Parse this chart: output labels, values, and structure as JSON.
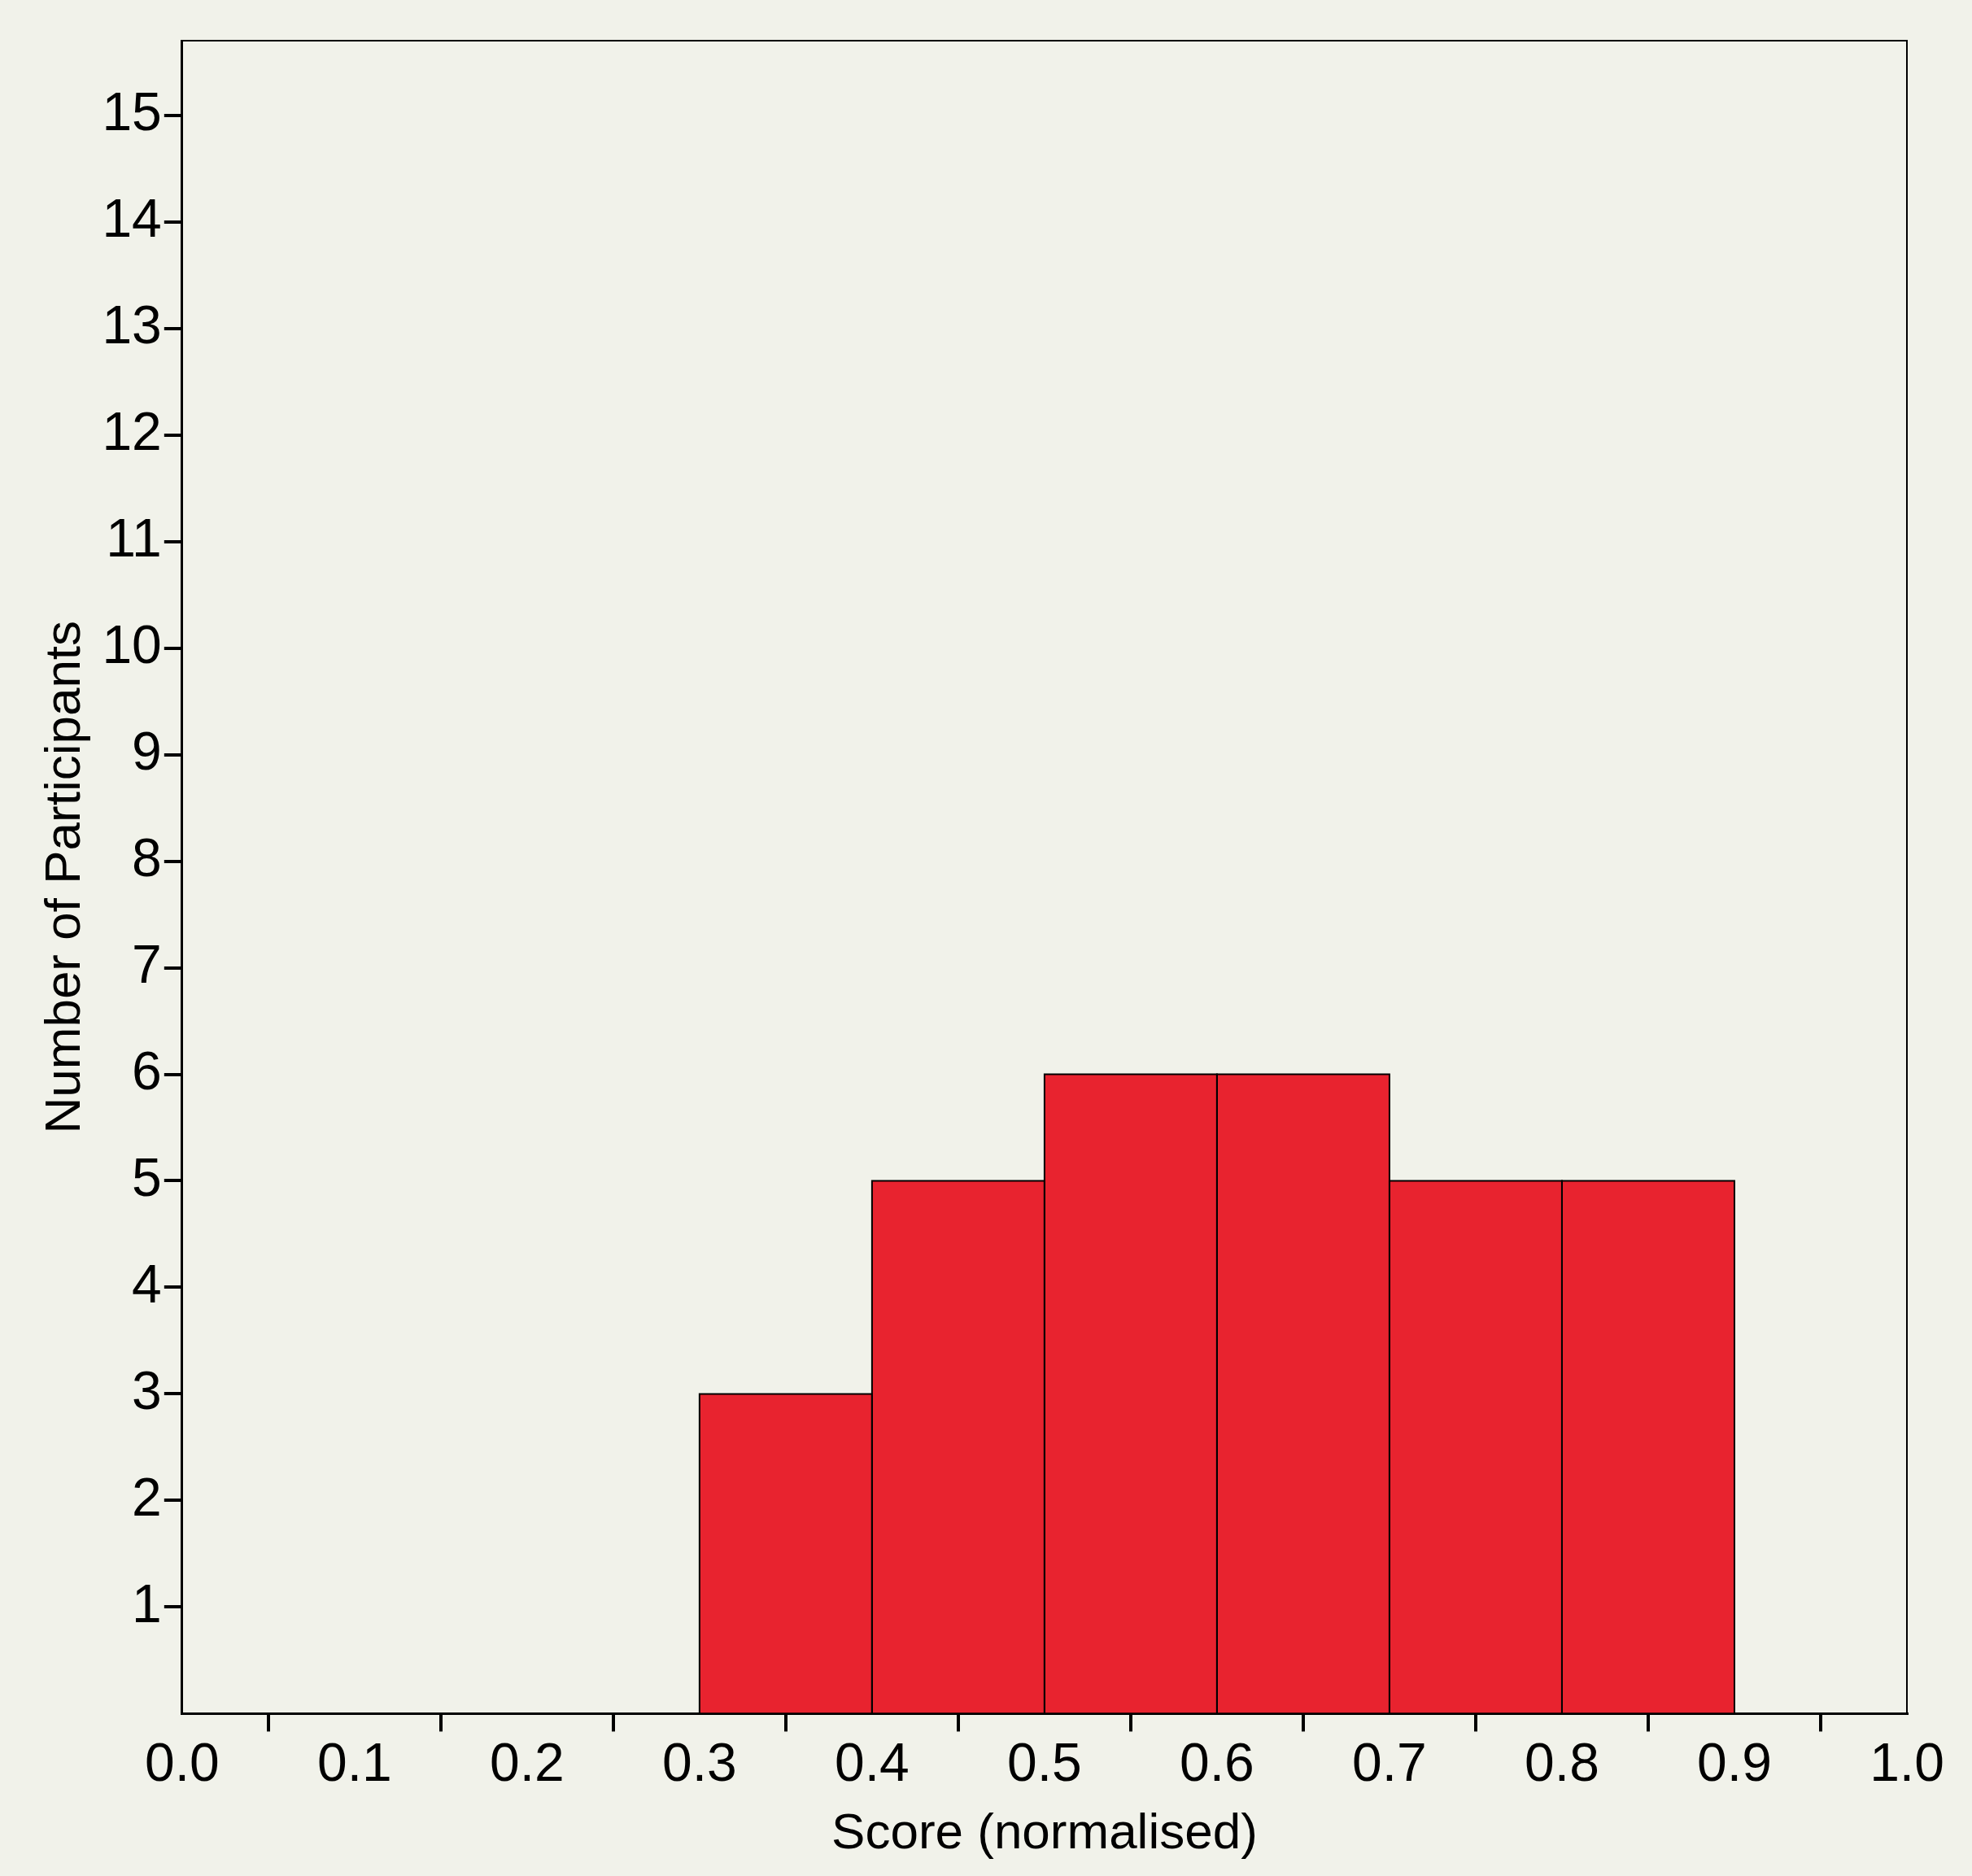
{
  "chart_data": {
    "type": "histogram",
    "xlabel": "Score (normalised)",
    "ylabel": "Number of Participants",
    "bins": [
      0.3,
      0.4,
      0.5,
      0.6,
      0.7,
      0.8,
      0.9
    ],
    "values": [
      3,
      5,
      6,
      6,
      5,
      5
    ],
    "color": "#e8232f",
    "xlim": [
      0,
      1
    ],
    "xticks": [
      {
        "value": 0,
        "label": "0.0"
      },
      {
        "value": 0.1,
        "label": "0.1"
      },
      {
        "value": 0.2,
        "label": "0.2"
      },
      {
        "value": 0.3,
        "label": "0.3"
      },
      {
        "value": 0.4,
        "label": "0.4"
      },
      {
        "value": 0.5,
        "label": "0.5"
      },
      {
        "value": 0.6,
        "label": "0.6"
      },
      {
        "value": 0.7,
        "label": "0.7"
      },
      {
        "value": 0.8,
        "label": "0.8"
      },
      {
        "value": 0.9,
        "label": "0.9"
      },
      {
        "value": 1,
        "label": "1.0"
      }
    ],
    "ylim": [
      0,
      15.7
    ],
    "yticks": [
      1,
      2,
      3,
      4,
      5,
      6,
      7,
      8,
      9,
      10,
      11,
      12,
      13,
      14,
      15
    ],
    "grid": false,
    "legend": false
  }
}
